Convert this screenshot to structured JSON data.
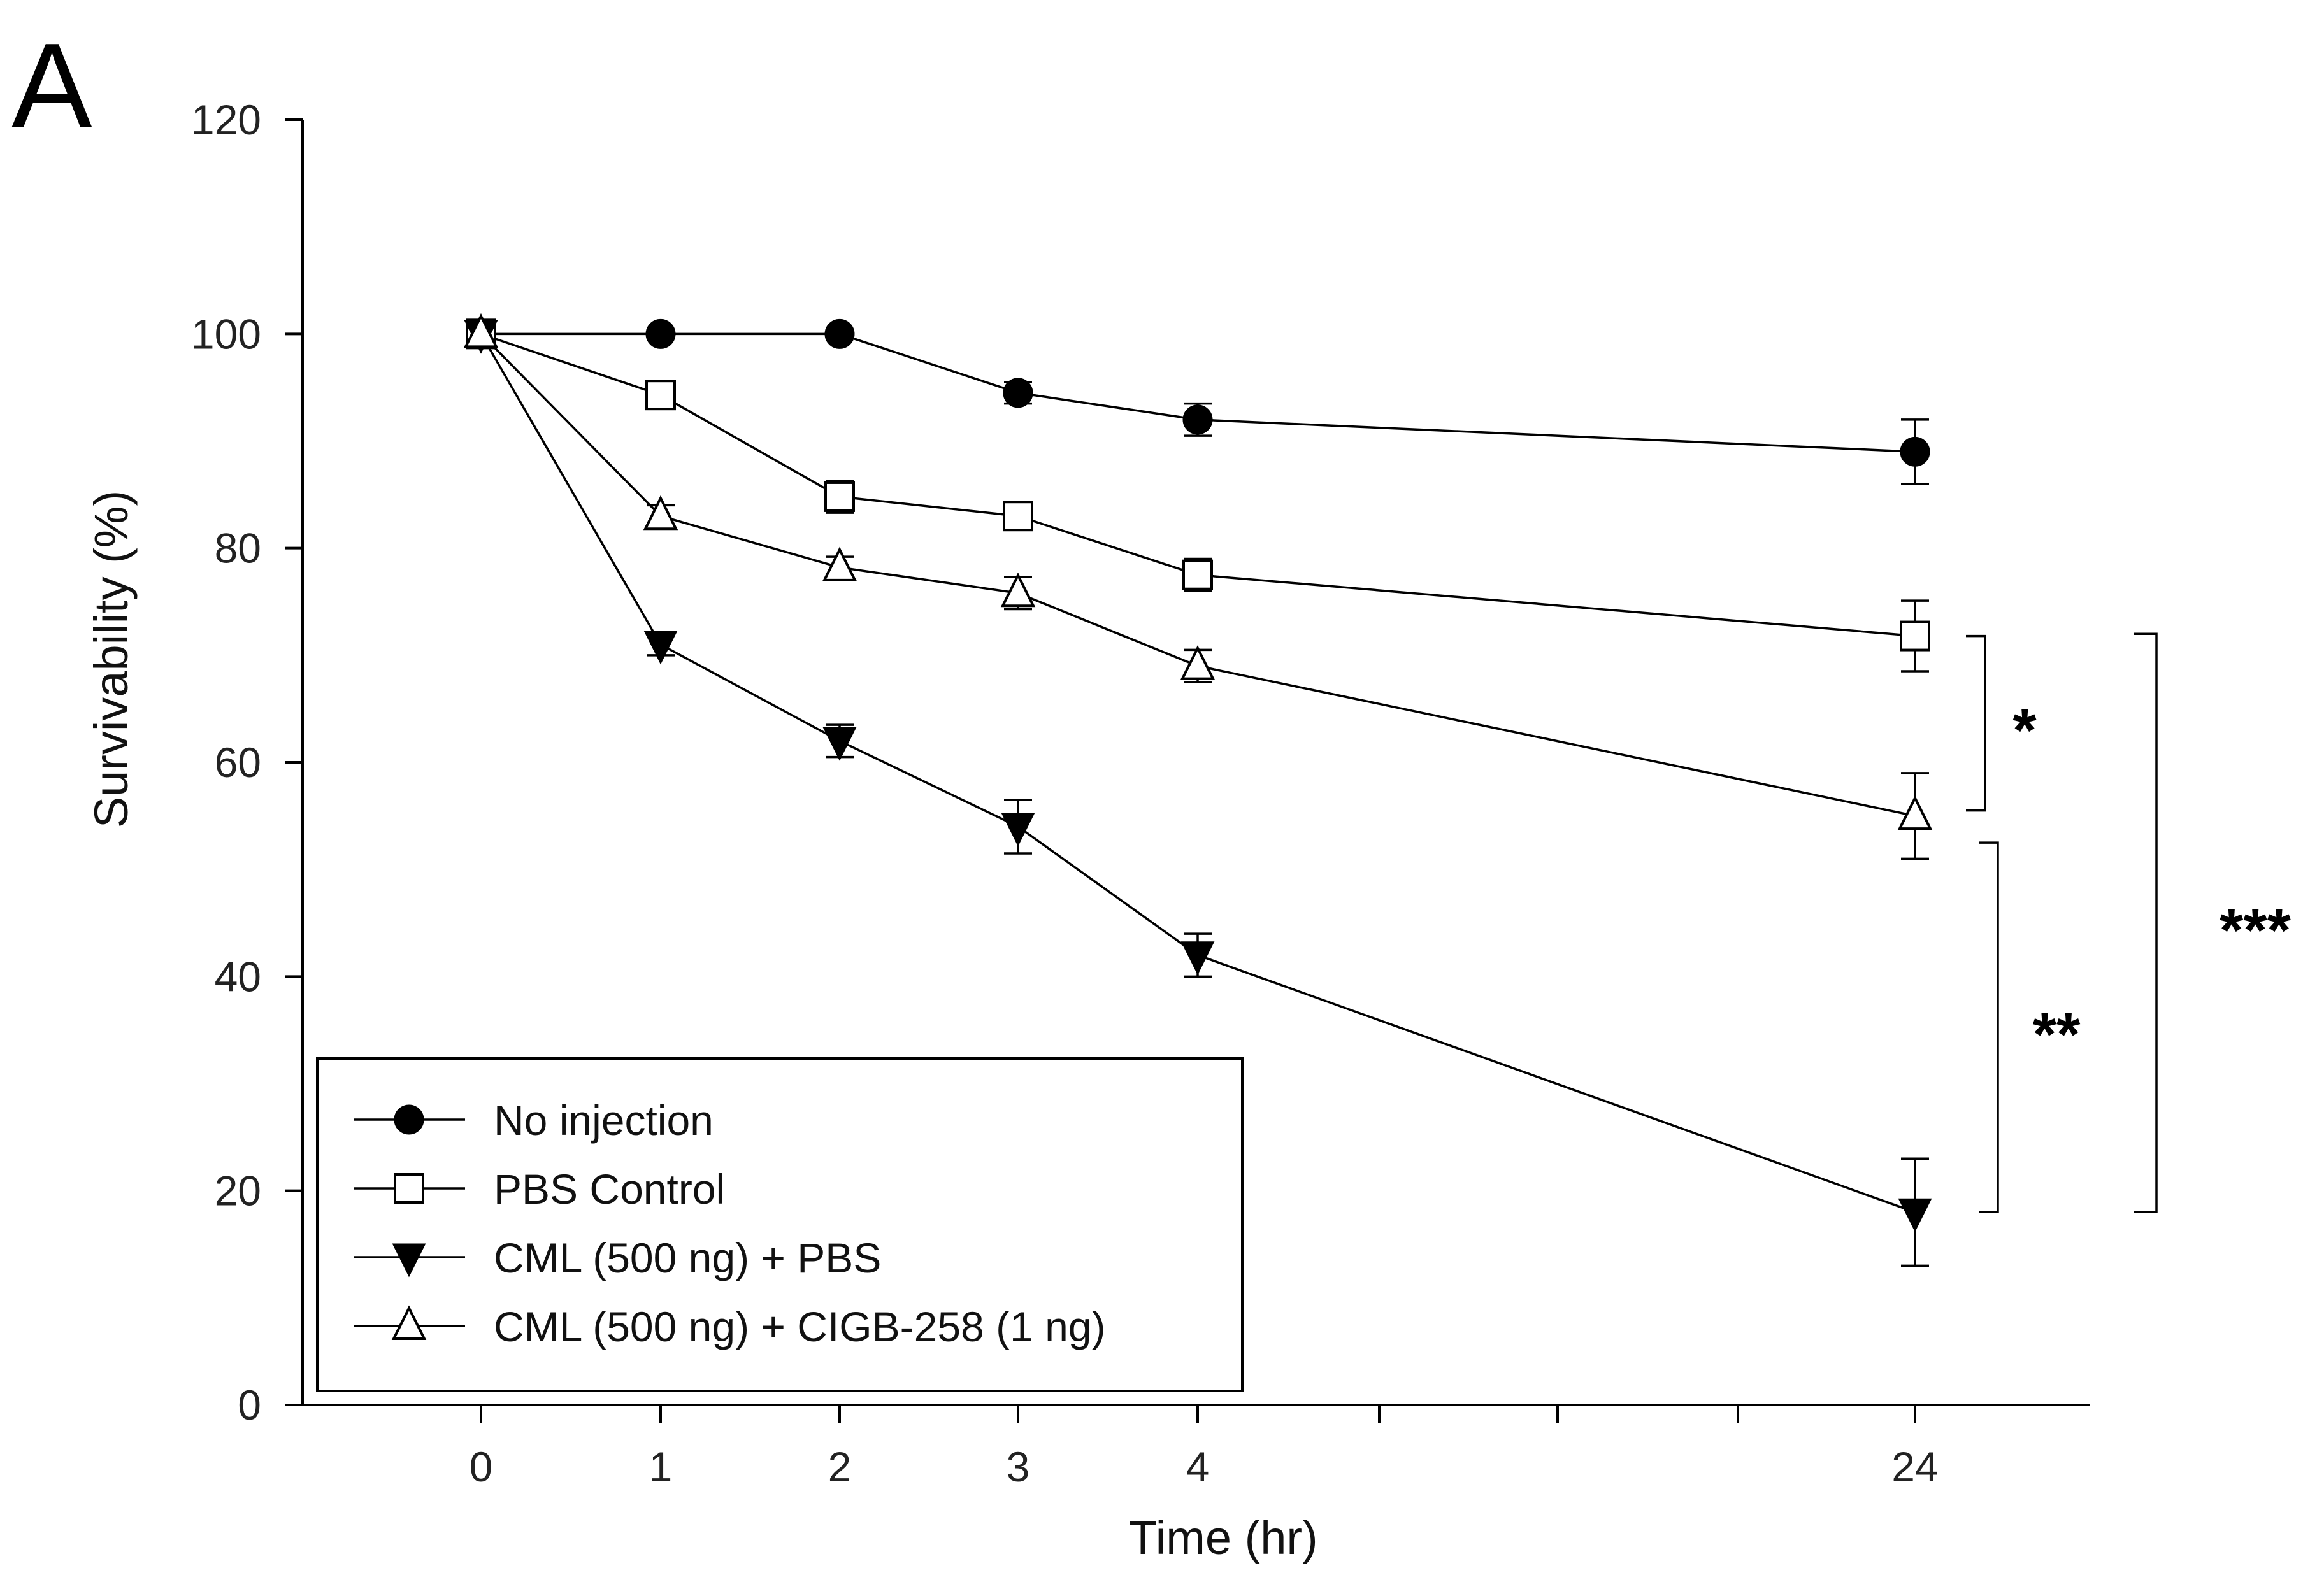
{
  "panel_label": "A",
  "chart_data": {
    "type": "line",
    "xlabel": "Time (hr)",
    "ylabel": "Survivability (%)",
    "ylim": [
      0,
      120
    ],
    "yticks": [
      0,
      20,
      40,
      60,
      80,
      100,
      120
    ],
    "xticks": [
      "0",
      "1",
      "2",
      "3",
      "4",
      "24"
    ],
    "x": [
      0,
      1,
      2,
      3,
      4,
      24
    ],
    "grid": false,
    "legend_position": "bottom-left",
    "series": [
      {
        "name": "No injection",
        "marker": "filled-circle",
        "values": [
          100,
          100,
          100,
          94.5,
          92,
          89
        ],
        "errors": [
          0,
          0,
          0,
          1,
          1.5,
          3
        ]
      },
      {
        "name": "PBS Control",
        "marker": "open-square",
        "values": [
          100,
          94.3,
          84.8,
          83,
          77.5,
          71.8
        ],
        "errors": [
          0,
          0.8,
          1.5,
          1,
          1.5,
          3.3
        ]
      },
      {
        "name": "CML (500 ng) + PBS",
        "marker": "filled-triangle-down",
        "values": [
          100,
          71,
          62,
          54,
          42,
          18
        ],
        "errors": [
          0,
          1,
          1.5,
          2.5,
          2,
          5
        ]
      },
      {
        "name": "CML (500 ng) + CIGB-258 (1 ng)",
        "marker": "open-triangle-up",
        "values": [
          100,
          83,
          78.2,
          75.8,
          69,
          55
        ],
        "errors": [
          0,
          1,
          1,
          1.5,
          1.5,
          4
        ]
      }
    ],
    "annotations": [
      {
        "text": "*",
        "from": 71.8,
        "to": 55.5,
        "bracket": "inner-upper"
      },
      {
        "text": "**",
        "from": 52.5,
        "to": 18,
        "bracket": "inner-lower"
      },
      {
        "text": "***",
        "from": 72,
        "to": 18,
        "bracket": "outer"
      }
    ]
  }
}
